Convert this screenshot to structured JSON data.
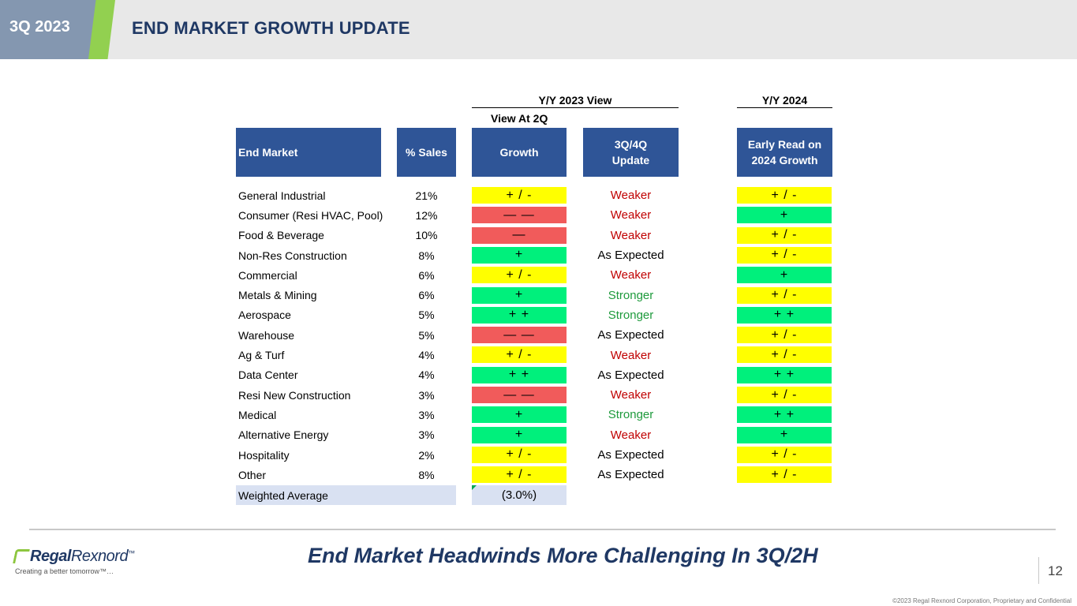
{
  "header": {
    "quarter": "3Q 2023",
    "title": "END MARKET GROWTH UPDATE"
  },
  "table": {
    "group_2023": "Y/Y 2023 View",
    "group_2024": "Y/Y 2024",
    "view_at_2q": "View At 2Q",
    "col_end_market": "End Market",
    "col_sales": "% Sales",
    "col_growth": "Growth",
    "col_update_l1": "3Q/4Q",
    "col_update_l2": "Update",
    "col_early_l1": "Early Read on",
    "col_early_l2": "2024 Growth",
    "rows": [
      {
        "market": "General Industrial",
        "sales": "21%",
        "growth": "+ / -",
        "update": "Weaker",
        "early": "+ / -"
      },
      {
        "market": "Consumer (Resi HVAC, Pool)",
        "sales": "12%",
        "growth": "— —",
        "update": "Weaker",
        "early": "+"
      },
      {
        "market": "Food & Beverage",
        "sales": "10%",
        "growth": "—",
        "update": "Weaker",
        "early": "+ / -"
      },
      {
        "market": "Non-Res Construction",
        "sales": "8%",
        "growth": "+",
        "update": "As Expected",
        "early": "+ / -"
      },
      {
        "market": "Commercial",
        "sales": "6%",
        "growth": "+ / -",
        "update": "Weaker",
        "early": "+"
      },
      {
        "market": "Metals & Mining",
        "sales": "6%",
        "growth": "+",
        "update": "Stronger",
        "early": "+ / -"
      },
      {
        "market": "Aerospace",
        "sales": "5%",
        "growth": "+ +",
        "update": "Stronger",
        "early": "+ +"
      },
      {
        "market": "Warehouse",
        "sales": "5%",
        "growth": "— —",
        "update": "As Expected",
        "early": "+ / -"
      },
      {
        "market": "Ag & Turf",
        "sales": "4%",
        "growth": "+ / -",
        "update": "Weaker",
        "early": "+ / -"
      },
      {
        "market": "Data Center",
        "sales": "4%",
        "growth": "+ +",
        "update": "As Expected",
        "early": "+ +"
      },
      {
        "market": "Resi New Construction",
        "sales": "3%",
        "growth": "— —",
        "update": "Weaker",
        "early": "+ / -"
      },
      {
        "market": "Medical",
        "sales": "3%",
        "growth": "+",
        "update": "Stronger",
        "early": "+ +"
      },
      {
        "market": "Alternative Energy",
        "sales": "3%",
        "growth": "+",
        "update": "Weaker",
        "early": "+"
      },
      {
        "market": "Hospitality",
        "sales": "2%",
        "growth": "+ / -",
        "update": "As Expected",
        "early": "+ / -"
      },
      {
        "market": "Other",
        "sales": "8%",
        "growth": "+ / -",
        "update": "As Expected",
        "early": "+ / -"
      }
    ],
    "weighted_label": "Weighted Average",
    "weighted_value": "(3.0%)"
  },
  "colors": {
    "yellow": "#ffff00",
    "red": "#f15b5b",
    "green": "#00f07c",
    "weaker_text": "#c00000",
    "stronger_text": "#1e9a3c",
    "expected_text": "#000000"
  },
  "footer": {
    "tagline": "End Market Headwinds More Challenging In 3Q/2H",
    "logo_bold": "Regal",
    "logo_light": "Rexnord",
    "logo_tm": "™",
    "logo_tagline": "Creating a better tomorrow™…",
    "page_number": "12",
    "copyright": "©2023 Regal Rexnord Corporation, Proprietary and Confidential"
  }
}
